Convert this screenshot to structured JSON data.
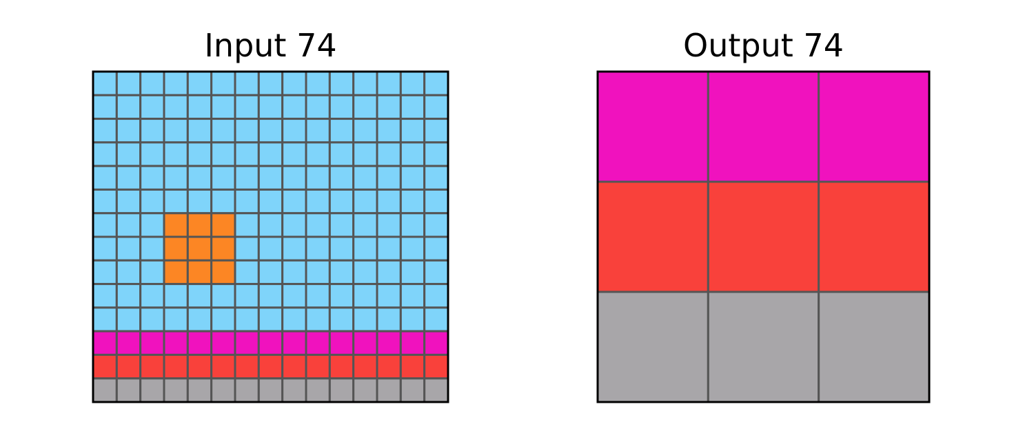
{
  "palette": {
    "0": "#000000",
    "1": "#1E93FF",
    "2": "#F93C31",
    "3": "#4FCC30",
    "4": "#FFDC00",
    "5": "#999999",
    "6": "#E53AA3",
    "7": "#FF851B",
    "8": "#87D8F1",
    "9": "#921231",
    "sky": "#7FD4FA",
    "orange": "#FC8624",
    "magenta": "#F012BE",
    "red": "#F9413B",
    "gray": "#A8A6A9",
    "gridline": "#555555",
    "border": "#000000"
  },
  "input": {
    "title": "Input 74",
    "rows": [
      [
        "sky",
        "sky",
        "sky",
        "sky",
        "sky",
        "sky",
        "sky",
        "sky",
        "sky",
        "sky",
        "sky",
        "sky",
        "sky",
        "sky",
        "sky"
      ],
      [
        "sky",
        "sky",
        "sky",
        "sky",
        "sky",
        "sky",
        "sky",
        "sky",
        "sky",
        "sky",
        "sky",
        "sky",
        "sky",
        "sky",
        "sky"
      ],
      [
        "sky",
        "sky",
        "sky",
        "sky",
        "sky",
        "sky",
        "sky",
        "sky",
        "sky",
        "sky",
        "sky",
        "sky",
        "sky",
        "sky",
        "sky"
      ],
      [
        "sky",
        "sky",
        "sky",
        "sky",
        "sky",
        "sky",
        "sky",
        "sky",
        "sky",
        "sky",
        "sky",
        "sky",
        "sky",
        "sky",
        "sky"
      ],
      [
        "sky",
        "sky",
        "sky",
        "sky",
        "sky",
        "sky",
        "sky",
        "sky",
        "sky",
        "sky",
        "sky",
        "sky",
        "sky",
        "sky",
        "sky"
      ],
      [
        "sky",
        "sky",
        "sky",
        "sky",
        "sky",
        "sky",
        "sky",
        "sky",
        "sky",
        "sky",
        "sky",
        "sky",
        "sky",
        "sky",
        "sky"
      ],
      [
        "sky",
        "sky",
        "sky",
        "orange",
        "orange",
        "orange",
        "sky",
        "sky",
        "sky",
        "sky",
        "sky",
        "sky",
        "sky",
        "sky",
        "sky"
      ],
      [
        "sky",
        "sky",
        "sky",
        "orange",
        "orange",
        "orange",
        "sky",
        "sky",
        "sky",
        "sky",
        "sky",
        "sky",
        "sky",
        "sky",
        "sky"
      ],
      [
        "sky",
        "sky",
        "sky",
        "orange",
        "orange",
        "orange",
        "sky",
        "sky",
        "sky",
        "sky",
        "sky",
        "sky",
        "sky",
        "sky",
        "sky"
      ],
      [
        "sky",
        "sky",
        "sky",
        "sky",
        "sky",
        "sky",
        "sky",
        "sky",
        "sky",
        "sky",
        "sky",
        "sky",
        "sky",
        "sky",
        "sky"
      ],
      [
        "sky",
        "sky",
        "sky",
        "sky",
        "sky",
        "sky",
        "sky",
        "sky",
        "sky",
        "sky",
        "sky",
        "sky",
        "sky",
        "sky",
        "sky"
      ],
      [
        "magenta",
        "magenta",
        "magenta",
        "magenta",
        "magenta",
        "magenta",
        "magenta",
        "magenta",
        "magenta",
        "magenta",
        "magenta",
        "magenta",
        "magenta",
        "magenta",
        "magenta"
      ],
      [
        "red",
        "red",
        "red",
        "red",
        "red",
        "red",
        "red",
        "red",
        "red",
        "red",
        "red",
        "red",
        "red",
        "red",
        "red"
      ],
      [
        "gray",
        "gray",
        "gray",
        "gray",
        "gray",
        "gray",
        "gray",
        "gray",
        "gray",
        "gray",
        "gray",
        "gray",
        "gray",
        "gray",
        "gray"
      ]
    ]
  },
  "output": {
    "title": "Output 74",
    "rows": [
      [
        "magenta",
        "magenta",
        "magenta"
      ],
      [
        "red",
        "red",
        "red"
      ],
      [
        "gray",
        "gray",
        "gray"
      ]
    ]
  }
}
